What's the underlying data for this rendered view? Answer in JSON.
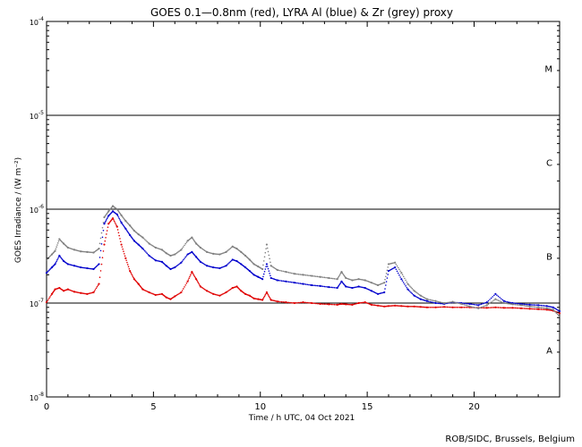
{
  "chart_data": {
    "type": "scatter",
    "title": "GOES 0.1—0.8nm (red), LYRA Al (blue) & Zr (grey) proxy",
    "xlabel": "Time / h UTC, 04 Oct 2021",
    "ylabel": "GOES Irradiance / (W m⁻²)",
    "credit": "ROB/SIDC, Brussels, Belgium",
    "xlim": [
      0,
      24
    ],
    "ylim": [
      1e-08,
      0.0001
    ],
    "y_scale": "log",
    "x_ticks": [
      0,
      5,
      10,
      15,
      20
    ],
    "x_tick_labels": [
      "0",
      "5",
      "10",
      "15",
      "20"
    ],
    "y_tick_labels": [
      {
        "base": "10",
        "exp": "-8",
        "value": 1e-08
      },
      {
        "base": "10",
        "exp": "-7",
        "value": 1e-07
      },
      {
        "base": "10",
        "exp": "-6",
        "value": 1e-06
      },
      {
        "base": "10",
        "exp": "-5",
        "value": 1e-05
      },
      {
        "base": "10",
        "exp": "-4",
        "value": 0.0001
      }
    ],
    "class_lines": [
      1e-07,
      1e-06,
      1e-05
    ],
    "flare_classes": [
      {
        "label": "A",
        "value": 3.16e-08
      },
      {
        "label": "B",
        "value": 3.16e-07
      },
      {
        "label": "C",
        "value": 3.16e-06
      },
      {
        "label": "M",
        "value": 3.16e-05
      }
    ],
    "series": [
      {
        "name": "GOES 0.1-0.8nm",
        "color": "#e00000",
        "x": [
          0.0,
          0.25,
          0.4,
          0.6,
          0.8,
          1.0,
          1.3,
          1.6,
          1.9,
          2.2,
          2.45,
          2.7,
          2.9,
          3.1,
          3.3,
          3.5,
          3.7,
          3.9,
          4.1,
          4.3,
          4.5,
          4.8,
          5.1,
          5.4,
          5.6,
          5.8,
          6.0,
          6.3,
          6.6,
          6.8,
          7.0,
          7.2,
          7.5,
          7.8,
          8.1,
          8.4,
          8.7,
          8.9,
          9.1,
          9.3,
          9.5,
          9.7,
          9.9,
          10.1,
          10.3,
          10.5,
          10.8,
          11.2,
          11.6,
          12.0,
          12.4,
          12.8,
          13.2,
          13.6,
          13.8,
          14.0,
          14.3,
          14.6,
          14.9,
          15.2,
          15.5,
          15.8,
          16.0,
          16.3,
          16.6,
          16.9,
          17.2,
          17.5,
          17.8,
          18.2,
          18.6,
          19.0,
          19.4,
          19.8,
          20.2,
          20.6,
          21.0,
          21.4,
          21.8,
          22.2,
          22.6,
          23.0,
          23.4,
          23.7,
          24.0
        ],
        "y": [
          1.02e-07,
          1.25e-07,
          1.4e-07,
          1.45e-07,
          1.35e-07,
          1.4e-07,
          1.32e-07,
          1.28e-07,
          1.25e-07,
          1.3e-07,
          1.6e-07,
          4.2e-07,
          7e-07,
          8e-07,
          6.5e-07,
          4.2e-07,
          3e-07,
          2.2e-07,
          1.8e-07,
          1.6e-07,
          1.4e-07,
          1.3e-07,
          1.22e-07,
          1.25e-07,
          1.15e-07,
          1.1e-07,
          1.18e-07,
          1.3e-07,
          1.7e-07,
          2.15e-07,
          1.8e-07,
          1.5e-07,
          1.35e-07,
          1.25e-07,
          1.2e-07,
          1.3e-07,
          1.45e-07,
          1.5e-07,
          1.35e-07,
          1.25e-07,
          1.2e-07,
          1.12e-07,
          1.1e-07,
          1.08e-07,
          1.3e-07,
          1.08e-07,
          1.04e-07,
          1.02e-07,
          1e-07,
          1.02e-07,
          1e-07,
          9.8e-08,
          9.7e-08,
          9.6e-08,
          9.8e-08,
          9.7e-08,
          9.6e-08,
          1e-07,
          1.02e-07,
          9.6e-08,
          9.4e-08,
          9.2e-08,
          9.3e-08,
          9.4e-08,
          9.3e-08,
          9.2e-08,
          9.2e-08,
          9.1e-08,
          9e-08,
          9e-08,
          9.1e-08,
          9e-08,
          9e-08,
          9e-08,
          8.9e-08,
          8.9e-08,
          9e-08,
          8.9e-08,
          8.9e-08,
          8.8e-08,
          8.7e-08,
          8.6e-08,
          8.5e-08,
          8.3e-08,
          7.8e-08
        ]
      },
      {
        "name": "LYRA Al proxy",
        "color": "#0000cc",
        "x": [
          0.0,
          0.25,
          0.4,
          0.6,
          0.8,
          1.0,
          1.3,
          1.6,
          1.9,
          2.2,
          2.45,
          2.7,
          2.9,
          3.1,
          3.3,
          3.5,
          3.7,
          3.9,
          4.1,
          4.3,
          4.5,
          4.8,
          5.1,
          5.4,
          5.6,
          5.8,
          6.0,
          6.3,
          6.6,
          6.8,
          7.0,
          7.2,
          7.5,
          7.8,
          8.1,
          8.4,
          8.7,
          8.9,
          9.1,
          9.3,
          9.5,
          9.7,
          9.9,
          10.1,
          10.3,
          10.5,
          10.8,
          11.2,
          11.6,
          12.0,
          12.4,
          12.8,
          13.2,
          13.6,
          13.8,
          14.0,
          14.3,
          14.6,
          14.9,
          15.2,
          15.5,
          15.8,
          16.0,
          16.3,
          16.6,
          16.9,
          17.2,
          17.5,
          17.8,
          18.2,
          18.6,
          19.0,
          19.4,
          19.8,
          20.2,
          20.6,
          21.0,
          21.4,
          21.8,
          22.2,
          22.6,
          23.0,
          23.4,
          23.7,
          24.0
        ],
        "y": [
          2.1e-07,
          2.4e-07,
          2.6e-07,
          3.2e-07,
          2.8e-07,
          2.6e-07,
          2.5e-07,
          2.4e-07,
          2.35e-07,
          2.3e-07,
          2.6e-07,
          7e-07,
          8.5e-07,
          9.5e-07,
          8.8e-07,
          7.2e-07,
          6.2e-07,
          5.3e-07,
          4.6e-07,
          4.2e-07,
          3.8e-07,
          3.2e-07,
          2.85e-07,
          2.75e-07,
          2.5e-07,
          2.3e-07,
          2.4e-07,
          2.7e-07,
          3.3e-07,
          3.5e-07,
          3.1e-07,
          2.75e-07,
          2.5e-07,
          2.4e-07,
          2.35e-07,
          2.5e-07,
          2.9e-07,
          2.8e-07,
          2.6e-07,
          2.4e-07,
          2.2e-07,
          2e-07,
          1.9e-07,
          1.8e-07,
          2.6e-07,
          1.85e-07,
          1.75e-07,
          1.7e-07,
          1.65e-07,
          1.6e-07,
          1.55e-07,
          1.52e-07,
          1.48e-07,
          1.45e-07,
          1.7e-07,
          1.5e-07,
          1.45e-07,
          1.5e-07,
          1.45e-07,
          1.35e-07,
          1.25e-07,
          1.3e-07,
          2.2e-07,
          2.4e-07,
          1.8e-07,
          1.4e-07,
          1.2e-07,
          1.1e-07,
          1.05e-07,
          1e-07,
          9.8e-08,
          1.02e-07,
          1e-07,
          9.8e-08,
          9.5e-08,
          1.02e-07,
          1.25e-07,
          1.05e-07,
          1e-07,
          9.8e-08,
          9.6e-08,
          9.5e-08,
          9.3e-08,
          9e-08,
          8.2e-08
        ]
      },
      {
        "name": "LYRA Zr proxy",
        "color": "#808080",
        "x": [
          0.0,
          0.25,
          0.4,
          0.6,
          0.8,
          1.0,
          1.3,
          1.6,
          1.9,
          2.2,
          2.45,
          2.7,
          2.9,
          3.1,
          3.3,
          3.5,
          3.7,
          3.9,
          4.1,
          4.3,
          4.5,
          4.8,
          5.1,
          5.4,
          5.6,
          5.8,
          6.0,
          6.3,
          6.6,
          6.8,
          7.0,
          7.2,
          7.5,
          7.8,
          8.1,
          8.4,
          8.7,
          8.9,
          9.1,
          9.3,
          9.5,
          9.7,
          9.9,
          10.1,
          10.3,
          10.5,
          10.8,
          11.2,
          11.6,
          12.0,
          12.4,
          12.8,
          13.2,
          13.6,
          13.8,
          14.0,
          14.3,
          14.6,
          14.9,
          15.2,
          15.5,
          15.8,
          16.0,
          16.3,
          16.6,
          16.9,
          17.2,
          17.5,
          17.8,
          18.2,
          18.6,
          19.0,
          19.4,
          19.8,
          20.2,
          20.6,
          21.0,
          21.4,
          21.8,
          22.2,
          22.6,
          23.0,
          23.4,
          23.7,
          24.0
        ],
        "y": [
          2.9e-07,
          3.3e-07,
          3.6e-07,
          4.8e-07,
          4.3e-07,
          3.9e-07,
          3.7e-07,
          3.55e-07,
          3.5e-07,
          3.45e-07,
          3.8e-07,
          8.2e-07,
          9.5e-07,
          1.08e-06,
          1e-06,
          8.6e-07,
          7.5e-07,
          6.7e-07,
          5.9e-07,
          5.4e-07,
          5e-07,
          4.3e-07,
          3.9e-07,
          3.7e-07,
          3.4e-07,
          3.2e-07,
          3.3e-07,
          3.7e-07,
          4.6e-07,
          5e-07,
          4.3e-07,
          3.9e-07,
          3.5e-07,
          3.35e-07,
          3.3e-07,
          3.5e-07,
          4e-07,
          3.8e-07,
          3.5e-07,
          3.2e-07,
          2.9e-07,
          2.6e-07,
          2.45e-07,
          2.3e-07,
          4.2e-07,
          2.5e-07,
          2.25e-07,
          2.15e-07,
          2.05e-07,
          2e-07,
          1.95e-07,
          1.9e-07,
          1.85e-07,
          1.8e-07,
          2.15e-07,
          1.85e-07,
          1.75e-07,
          1.8e-07,
          1.75e-07,
          1.65e-07,
          1.55e-07,
          1.65e-07,
          2.6e-07,
          2.7e-07,
          2.1e-07,
          1.6e-07,
          1.35e-07,
          1.2e-07,
          1.1e-07,
          1.05e-07,
          1e-07,
          1.03e-07,
          9.8e-08,
          9.2e-08,
          8.8e-08,
          9.5e-08,
          1.1e-07,
          1e-07,
          9.7e-08,
          9.5e-08,
          9.2e-08,
          9e-08,
          8.8e-08,
          8.5e-08,
          7.2e-08
        ]
      }
    ]
  }
}
